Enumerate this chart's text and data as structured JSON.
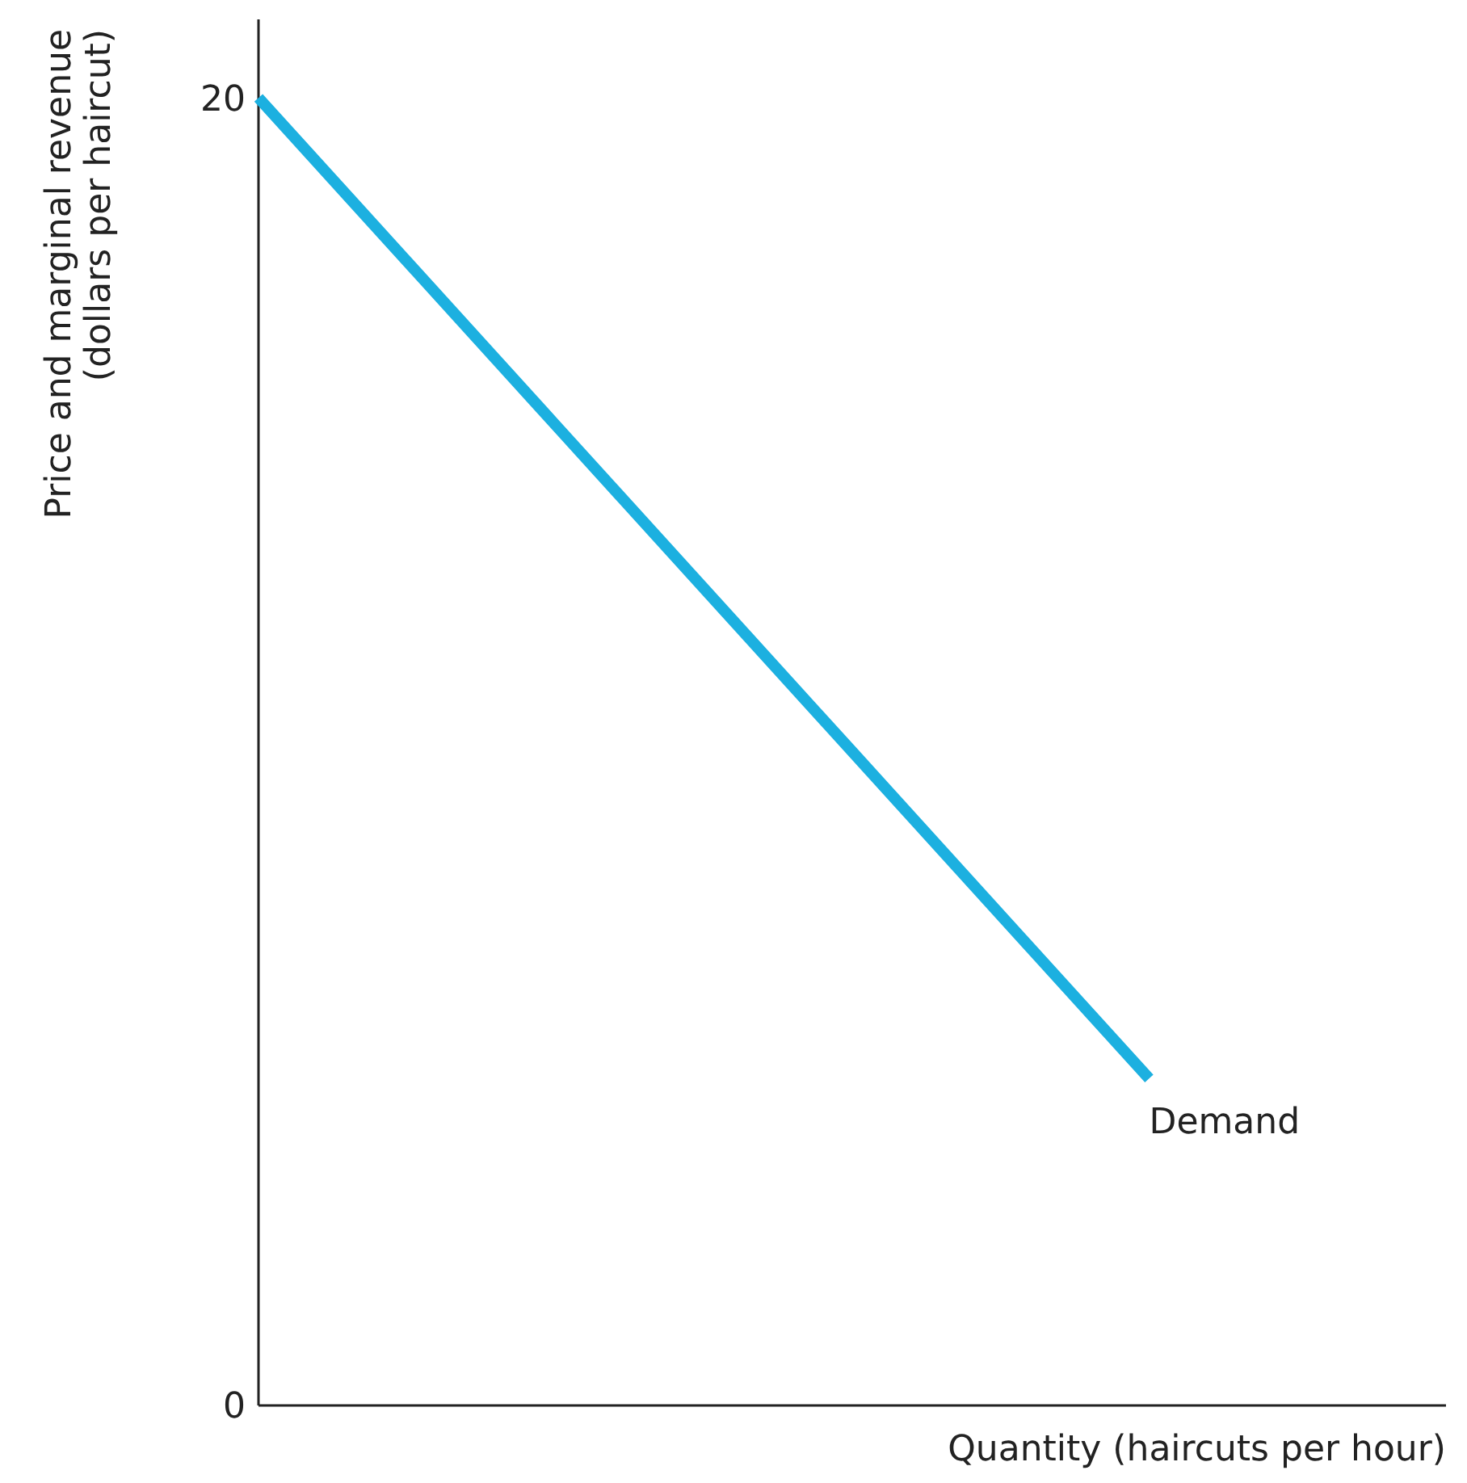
{
  "chart_data": {
    "type": "line",
    "categories": [
      null,
      null,
      null,
      null,
      null
    ],
    "series": [
      {
        "name": "Demand",
        "color": "#1cb0e0",
        "values": [
          20,
          15,
          10,
          5,
          null
        ]
      }
    ],
    "ylim": [
      0,
      21.2
    ],
    "yticks": [
      0,
      20
    ],
    "xlabel": "Quantity (haircuts per hour)",
    "ylabel": "Price and marginal revenue\n(dollars per haircut)",
    "grid": false,
    "marker": "none",
    "line_style": "solid"
  }
}
